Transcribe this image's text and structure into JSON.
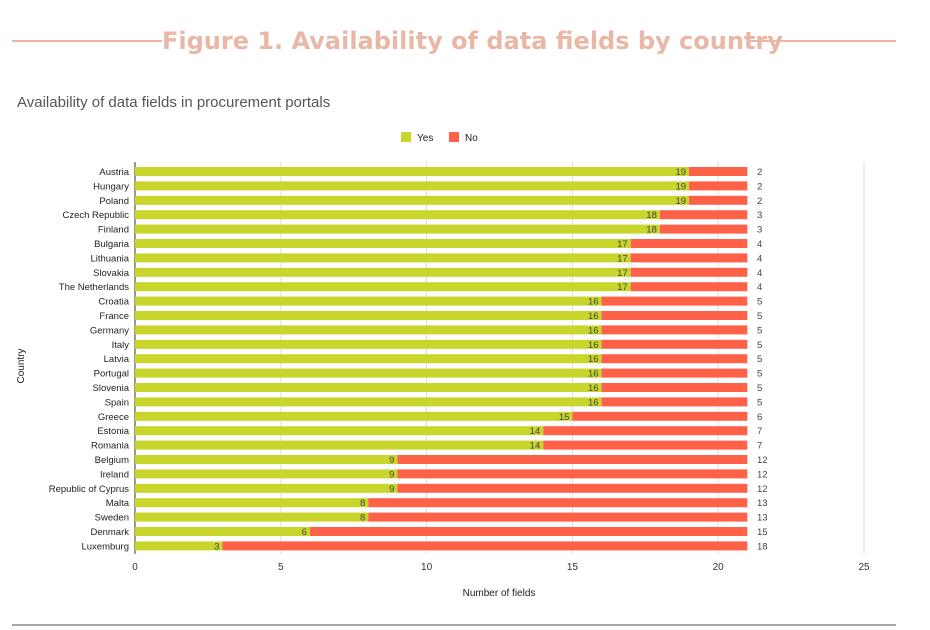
{
  "figure": {
    "title": "Figure 1. Availability of data fields by country"
  },
  "chart_data": {
    "type": "bar",
    "orientation": "horizontal",
    "stacked": true,
    "title": "Availability of data fields in procurement portals",
    "xlabel": "Number of fields",
    "ylabel": "Country",
    "xlim": [
      0,
      25
    ],
    "xticks": [
      0,
      5,
      10,
      15,
      20,
      25
    ],
    "grid": "vertical",
    "legend_position": "top-center",
    "categories": [
      "Austria",
      "Hungary",
      "Poland",
      "Czech Republic",
      "Finland",
      "Bulgaria",
      "Lithuania",
      "Slovakia",
      "The Netherlands",
      "Croatia",
      "France",
      "Germany",
      "Italy",
      "Latvia",
      "Portugal",
      "Slovenia",
      "Spain",
      "Greece",
      "Estonia",
      "Romania",
      "Belgium",
      "Ireland",
      "Republic of Cyprus",
      "Malta",
      "Sweden",
      "Denmark",
      "Luxemburg"
    ],
    "series": [
      {
        "name": "Yes",
        "color": "#c8d62c",
        "values": [
          19,
          19,
          19,
          18,
          18,
          17,
          17,
          17,
          17,
          16,
          16,
          16,
          16,
          16,
          16,
          16,
          16,
          15,
          14,
          14,
          9,
          9,
          9,
          8,
          8,
          6,
          3
        ]
      },
      {
        "name": "No",
        "color": "#fe6148",
        "values": [
          2,
          2,
          2,
          3,
          3,
          4,
          4,
          4,
          4,
          5,
          5,
          5,
          5,
          5,
          5,
          5,
          5,
          6,
          7,
          7,
          12,
          12,
          12,
          13,
          13,
          15,
          18
        ]
      }
    ]
  }
}
